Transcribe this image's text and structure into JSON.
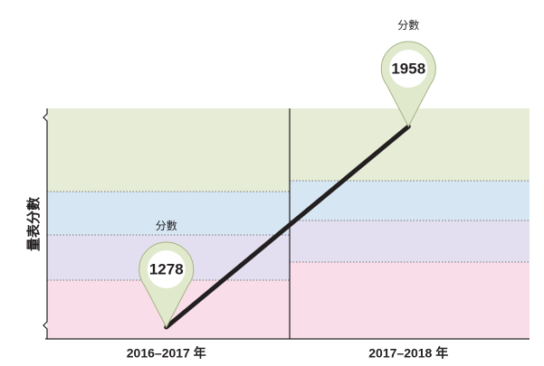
{
  "chart_data": {
    "type": "line",
    "y_label": "量表分數",
    "categories": [
      "2016–2017 年",
      "2017–2018 年"
    ],
    "values": [
      1278,
      1958
    ],
    "annotations": [
      "分數",
      "分數"
    ],
    "color": "#231f20"
  }
}
